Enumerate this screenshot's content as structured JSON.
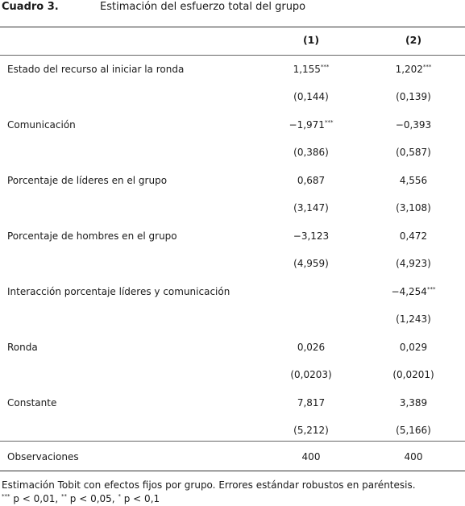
{
  "caption": {
    "number": "Cuadro 3.",
    "title": "Estimación del esfuerzo total del grupo"
  },
  "columns": [
    "(1)",
    "(2)"
  ],
  "rows": [
    {
      "label": "Estado del recurso al iniciar la ronda",
      "c1": "1,155",
      "c1_sig": "***",
      "c2": "1,202",
      "c2_sig": "***",
      "se1": "(0,144)",
      "se2": "(0,139)"
    },
    {
      "label": "Comunicación",
      "c1": "−1,971",
      "c1_sig": "***",
      "c2": "−0,393",
      "c2_sig": "",
      "se1": "(0,386)",
      "se2": "(0,587)"
    },
    {
      "label": "Porcentaje de líderes en el grupo",
      "c1": "0,687",
      "c1_sig": "",
      "c2": "4,556",
      "c2_sig": "",
      "se1": "(3,147)",
      "se2": "(3,108)"
    },
    {
      "label": "Porcentaje de hombres en el grupo",
      "c1": "−3,123",
      "c1_sig": "",
      "c2": "0,472",
      "c2_sig": "",
      "se1": "(4,959)",
      "se2": "(4,923)"
    },
    {
      "label": "Interacción porcentaje líderes y comunicación",
      "c1": "",
      "c1_sig": "",
      "c2": "−4,254",
      "c2_sig": "***",
      "se1": "",
      "se2": "(1,243)"
    },
    {
      "label": "Ronda",
      "c1": "0,026",
      "c1_sig": "",
      "c2": "0,029",
      "c2_sig": "",
      "se1": "(0,0203)",
      "se2": "(0,0201)"
    },
    {
      "label": "Constante",
      "c1": "7,817",
      "c1_sig": "",
      "c2": "3,389",
      "c2_sig": "",
      "se1": "(5,212)",
      "se2": "(5,166)"
    }
  ],
  "observations": {
    "label": "Observaciones",
    "c1": "400",
    "c2": "400"
  },
  "notes": {
    "line1": "Estimación Tobit con efectos fijos por grupo. Errores estándar robustos en paréntesis.",
    "sig1_mark": "***",
    "sig1_text": " p < 0,01, ",
    "sig2_mark": "**",
    "sig2_text": " p < 0,05, ",
    "sig3_mark": "*",
    "sig3_text": " p < 0,1"
  }
}
